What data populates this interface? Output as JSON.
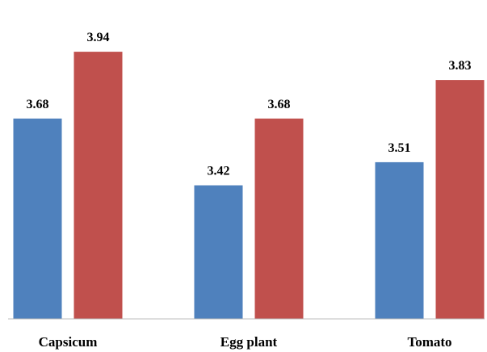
{
  "chart_data": {
    "type": "bar",
    "categories": [
      "Capsicum",
      "Egg plant",
      "Tomato"
    ],
    "series": [
      {
        "values": [
          3.68,
          3.42,
          3.51
        ],
        "color": "#4F81BD"
      },
      {
        "values": [
          3.94,
          3.68,
          3.83
        ],
        "color": "#C0504D"
      }
    ],
    "ylim": [
      2.9,
      4.0
    ],
    "grid": false,
    "legend": "none",
    "xlabel": "",
    "ylabel": ""
  }
}
